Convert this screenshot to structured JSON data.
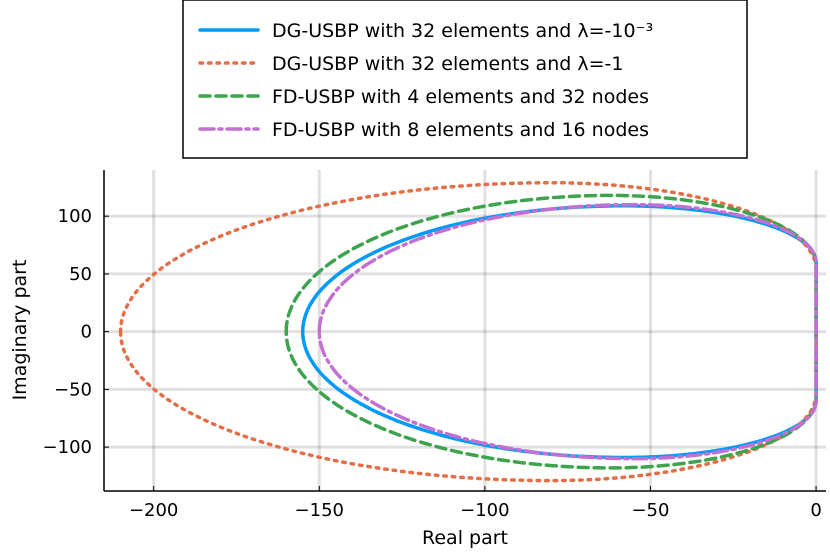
{
  "chart_data": {
    "type": "line",
    "xlabel": "Real part",
    "ylabel": "Imaginary part",
    "xlim": [
      -215,
      3
    ],
    "ylim": [
      -138,
      140
    ],
    "xticks": [
      -200,
      -150,
      -100,
      -50,
      0
    ],
    "yticks": [
      -100,
      -50,
      0,
      50,
      100
    ],
    "xtick_labels": [
      "−200",
      "−150",
      "−100",
      "−50",
      "0"
    ],
    "ytick_labels": [
      "−100",
      "−50",
      "0",
      "50",
      "100"
    ],
    "grid": true,
    "legend_position": "top-center",
    "series": [
      {
        "name": "DG-USBP with 32 elements and λ=-10⁻³",
        "color": "#009af9",
        "style": "solid",
        "leftmost": -155,
        "vertex_x": -58,
        "vertex_y": 109,
        "right_x": 0,
        "right_hh": 60
      },
      {
        "name": "DG-USBP with 32 elements and λ=-1",
        "color": "#e26f46",
        "style": "dotted",
        "leftmost": -210,
        "vertex_x": -80,
        "vertex_y": 129,
        "right_x": 0,
        "right_hh": 54
      },
      {
        "name": "FD-USBP with 4 elements and 32 nodes",
        "color": "#3da44d",
        "style": "dashed",
        "leftmost": -160,
        "vertex_x": -62,
        "vertex_y": 118,
        "right_x": 0,
        "right_hh": 58
      },
      {
        "name": "FD-USBP with 8 elements and 16 nodes",
        "color": "#c271d2",
        "style": "dashdot",
        "leftmost": -150,
        "vertex_x": -55,
        "vertex_y": 110,
        "right_x": 0,
        "right_hh": 60
      }
    ]
  }
}
